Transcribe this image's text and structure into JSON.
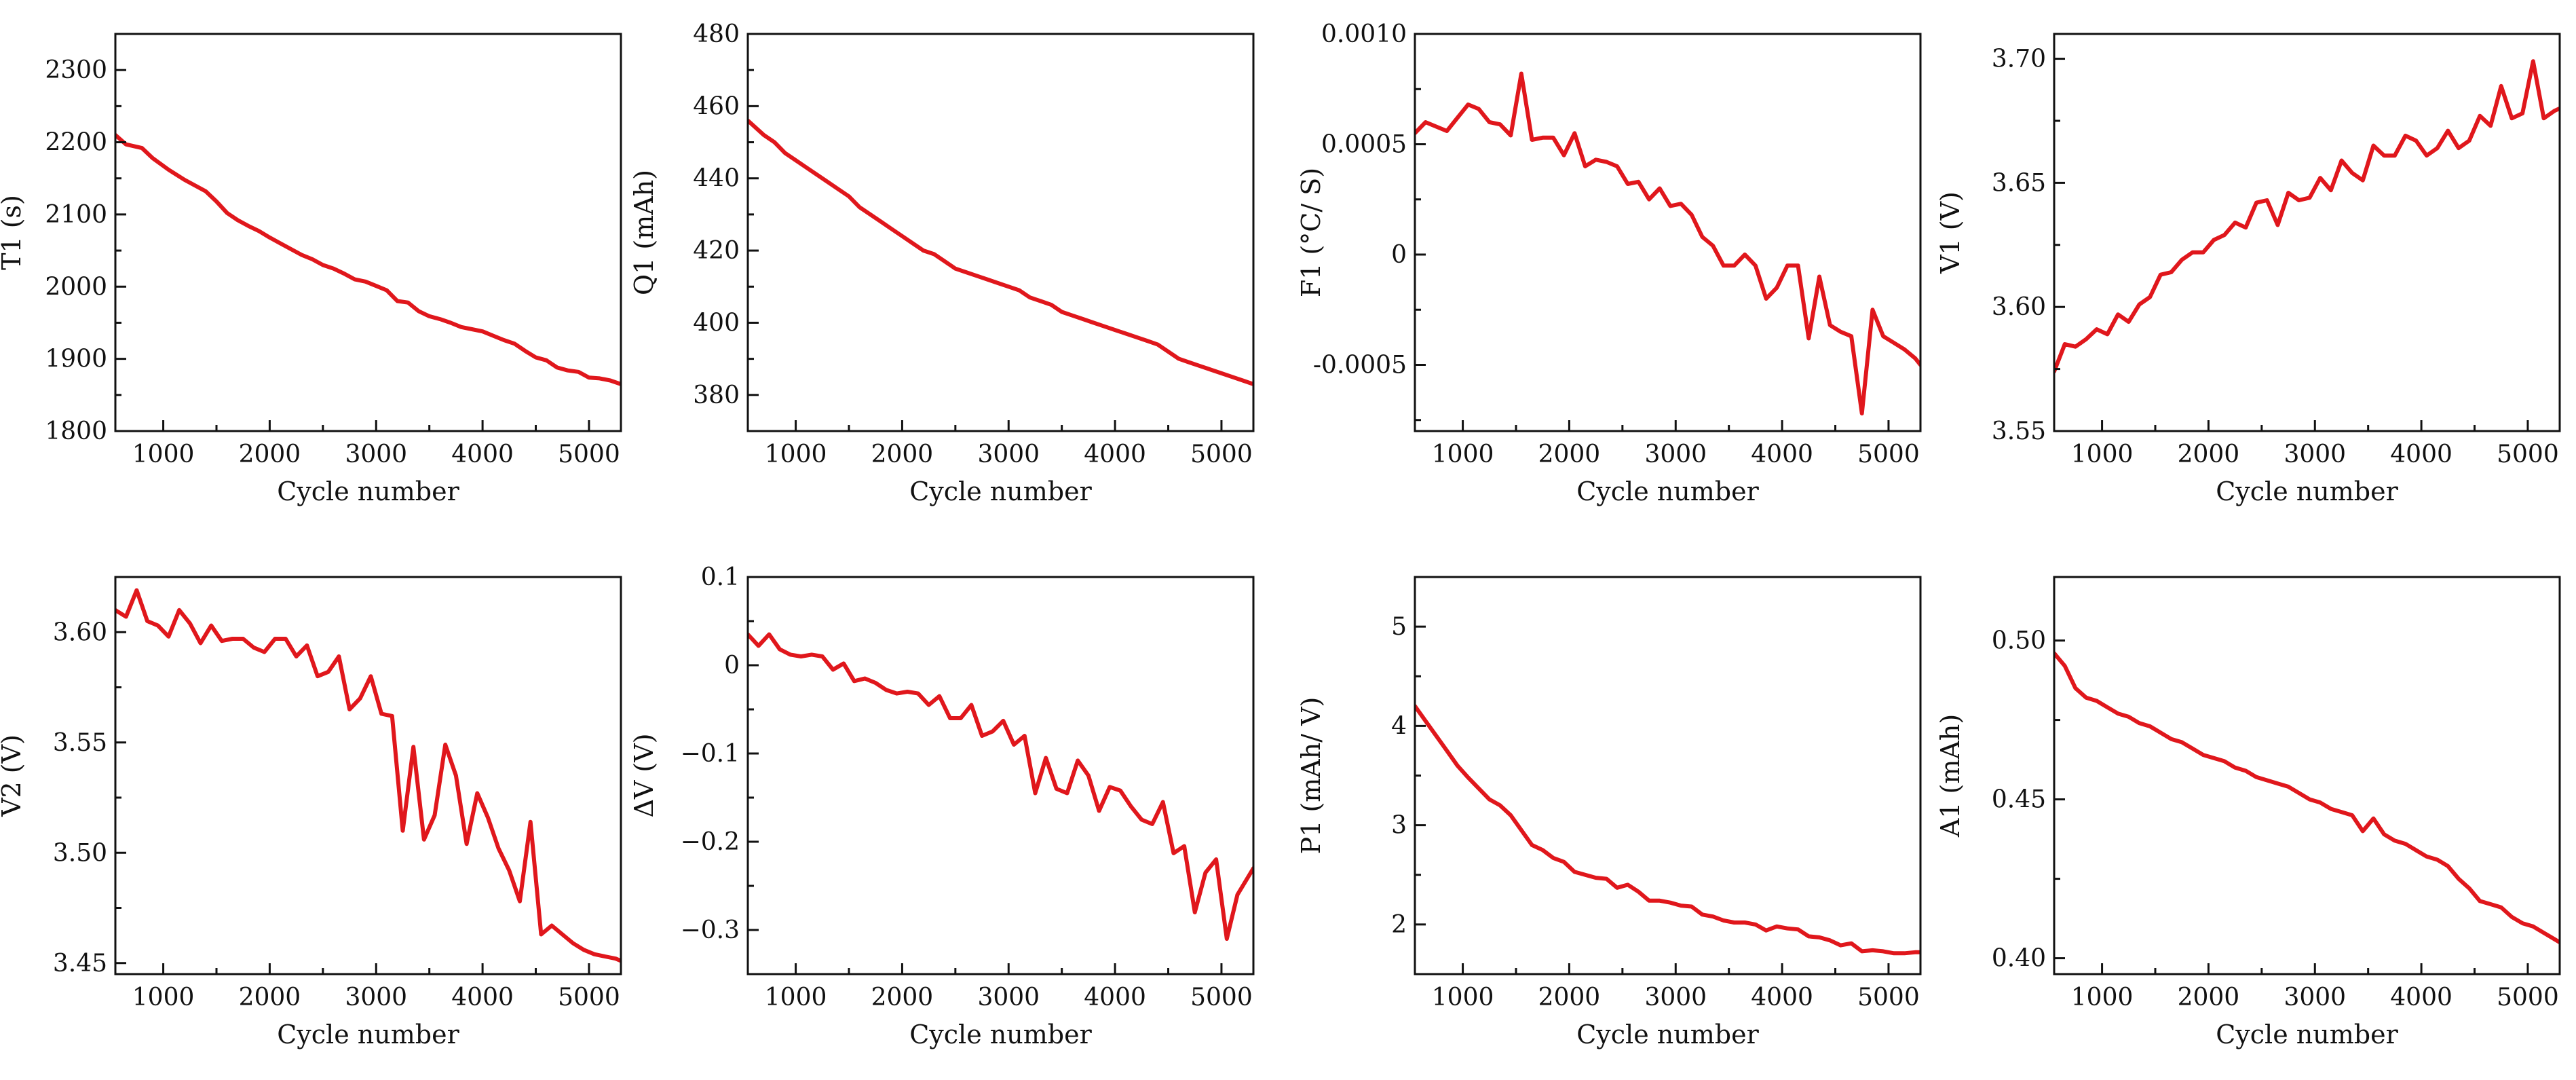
{
  "figure": {
    "line_color": "#e0171c",
    "x_tick_labels": [
      "1000",
      "2000",
      "3000",
      "4000",
      "5000"
    ]
  },
  "chart_data": [
    {
      "type": "line",
      "ylabel": "T1 (s)",
      "xlabel": "Cycle number",
      "xlim": [
        550,
        5300
      ],
      "ylim": [
        1800,
        2350
      ],
      "yticks": [
        1800,
        1900,
        2000,
        2100,
        2200,
        2300
      ],
      "ytick_labels": [
        "1800",
        "1900",
        "2000",
        "2100",
        "2200",
        "2300"
      ],
      "series": [
        {
          "name": "T1",
          "x": [
            550,
            650,
            800,
            900,
            1050,
            1200,
            1300,
            1400,
            1500,
            1600,
            1700,
            1800,
            1900,
            2000,
            2100,
            2200,
            2300,
            2400,
            2500,
            2600,
            2700,
            2800,
            2900,
            3000,
            3100,
            3200,
            3300,
            3400,
            3500,
            3600,
            3700,
            3800,
            3900,
            4000,
            4100,
            4200,
            4300,
            4400,
            4500,
            4600,
            4700,
            4800,
            4900,
            5000,
            5100,
            5200,
            5300
          ],
          "y": [
            2210,
            2197,
            2192,
            2178,
            2162,
            2148,
            2140,
            2132,
            2118,
            2102,
            2092,
            2084,
            2077,
            2068,
            2060,
            2052,
            2044,
            2038,
            2030,
            2025,
            2018,
            2010,
            2007,
            2001,
            1995,
            1980,
            1978,
            1966,
            1959,
            1955,
            1950,
            1944,
            1941,
            1938,
            1932,
            1926,
            1921,
            1911,
            1902,
            1898,
            1888,
            1884,
            1882,
            1874,
            1873,
            1870,
            1865
          ]
        }
      ]
    },
    {
      "type": "line",
      "ylabel": "Q1 (mAh)",
      "xlabel": "Cycle number",
      "xlim": [
        550,
        5300
      ],
      "ylim": [
        370,
        480
      ],
      "yticks": [
        380,
        400,
        420,
        440,
        460,
        480
      ],
      "ytick_labels": [
        "380",
        "400",
        "420",
        "440",
        "460",
        "480"
      ],
      "series": [
        {
          "name": "Q1",
          "x": [
            550,
            700,
            800,
            900,
            1000,
            1100,
            1200,
            1300,
            1400,
            1500,
            1600,
            1700,
            1800,
            1900,
            2000,
            2100,
            2200,
            2300,
            2400,
            2500,
            2600,
            2700,
            2800,
            2900,
            3000,
            3100,
            3200,
            3300,
            3400,
            3500,
            3600,
            3700,
            3800,
            3900,
            4000,
            4100,
            4200,
            4300,
            4400,
            4500,
            4600,
            4700,
            4800,
            4900,
            5000,
            5100,
            5200,
            5300
          ],
          "y": [
            456,
            452,
            450,
            447,
            445,
            443,
            441,
            439,
            437,
            435,
            432,
            430,
            428,
            426,
            424,
            422,
            420,
            419,
            417,
            415,
            414,
            413,
            412,
            411,
            410,
            409,
            407,
            406,
            405,
            403,
            402,
            401,
            400,
            399,
            398,
            397,
            396,
            395,
            394,
            392,
            390,
            389,
            388,
            387,
            386,
            385,
            384,
            383
          ]
        }
      ]
    },
    {
      "type": "line",
      "ylabel": "F1 (°C/ S)",
      "xlabel": "Cycle number",
      "xlim": [
        550,
        5300
      ],
      "ylim": [
        -0.0008,
        0.001
      ],
      "yticks": [
        -0.0005,
        0,
        0.0005,
        0.001
      ],
      "ytick_labels": [
        "-0.0005",
        "0",
        "0.0005",
        "0.0010"
      ],
      "series": [
        {
          "name": "F1",
          "x": [
            550,
            650,
            750,
            850,
            950,
            1050,
            1150,
            1250,
            1350,
            1450,
            1550,
            1650,
            1750,
            1850,
            1950,
            2050,
            2150,
            2250,
            2350,
            2450,
            2550,
            2650,
            2750,
            2850,
            2950,
            3050,
            3150,
            3250,
            3350,
            3450,
            3550,
            3650,
            3750,
            3850,
            3950,
            4050,
            4150,
            4250,
            4350,
            4450,
            4550,
            4650,
            4750,
            4850,
            4950,
            5050,
            5150,
            5250,
            5300
          ],
          "y": [
            0.00055,
            0.0006,
            0.00058,
            0.00056,
            0.00062,
            0.00068,
            0.00066,
            0.0006,
            0.00059,
            0.00054,
            0.00082,
            0.00052,
            0.00053,
            0.00053,
            0.00045,
            0.00055,
            0.0004,
            0.00043,
            0.00042,
            0.0004,
            0.00032,
            0.00033,
            0.00025,
            0.0003,
            0.00022,
            0.00023,
            0.00018,
            8e-05,
            4e-05,
            -5e-05,
            -5e-05,
            0.0,
            -5e-05,
            -0.0002,
            -0.00015,
            -5e-05,
            -5e-05,
            -0.00038,
            -0.0001,
            -0.00032,
            -0.00035,
            -0.00037,
            -0.00072,
            -0.00025,
            -0.00037,
            -0.0004,
            -0.00043,
            -0.00047,
            -0.0005
          ]
        }
      ]
    },
    {
      "type": "line",
      "ylabel": "V1 (V)",
      "xlabel": "Cycle number",
      "xlim": [
        550,
        5300
      ],
      "ylim": [
        3.55,
        3.71
      ],
      "yticks": [
        3.55,
        3.6,
        3.65,
        3.7
      ],
      "ytick_labels": [
        "3.55",
        "3.60",
        "3.65",
        "3.70"
      ],
      "series": [
        {
          "name": "V1",
          "x": [
            550,
            650,
            750,
            850,
            950,
            1050,
            1150,
            1250,
            1350,
            1450,
            1550,
            1650,
            1750,
            1850,
            1950,
            2050,
            2150,
            2250,
            2350,
            2450,
            2550,
            2650,
            2750,
            2850,
            2950,
            3050,
            3150,
            3250,
            3350,
            3450,
            3550,
            3650,
            3750,
            3850,
            3950,
            4050,
            4150,
            4250,
            4350,
            4450,
            4550,
            4650,
            4750,
            4850,
            4950,
            5050,
            5150,
            5250,
            5300
          ],
          "y": [
            3.574,
            3.585,
            3.584,
            3.587,
            3.591,
            3.589,
            3.597,
            3.594,
            3.601,
            3.604,
            3.613,
            3.614,
            3.619,
            3.622,
            3.622,
            3.627,
            3.629,
            3.634,
            3.632,
            3.642,
            3.643,
            3.633,
            3.646,
            3.643,
            3.644,
            3.652,
            3.647,
            3.659,
            3.654,
            3.651,
            3.665,
            3.661,
            3.661,
            3.669,
            3.667,
            3.661,
            3.664,
            3.671,
            3.664,
            3.667,
            3.677,
            3.673,
            3.689,
            3.676,
            3.678,
            3.699,
            3.676,
            3.679,
            3.68
          ]
        }
      ]
    },
    {
      "type": "line",
      "ylabel": "V2 (V)",
      "xlabel": "Cycle number",
      "xlim": [
        550,
        5300
      ],
      "ylim": [
        3.445,
        3.625
      ],
      "yticks": [
        3.45,
        3.5,
        3.55,
        3.6
      ],
      "ytick_labels": [
        "3.45",
        "3.50",
        "3.55",
        "3.60"
      ],
      "series": [
        {
          "name": "V2",
          "x": [
            550,
            650,
            750,
            850,
            950,
            1050,
            1150,
            1250,
            1350,
            1450,
            1550,
            1650,
            1750,
            1850,
            1950,
            2050,
            2150,
            2250,
            2350,
            2450,
            2550,
            2650,
            2750,
            2850,
            2950,
            3050,
            3150,
            3250,
            3350,
            3450,
            3550,
            3650,
            3750,
            3850,
            3950,
            4050,
            4150,
            4250,
            4350,
            4450,
            4550,
            4650,
            4750,
            4850,
            4950,
            5050,
            5150,
            5250,
            5300
          ],
          "y": [
            3.61,
            3.607,
            3.619,
            3.605,
            3.603,
            3.598,
            3.61,
            3.604,
            3.595,
            3.603,
            3.596,
            3.597,
            3.597,
            3.593,
            3.591,
            3.597,
            3.597,
            3.589,
            3.594,
            3.58,
            3.582,
            3.589,
            3.565,
            3.57,
            3.58,
            3.563,
            3.562,
            3.51,
            3.548,
            3.506,
            3.517,
            3.549,
            3.535,
            3.504,
            3.527,
            3.516,
            3.502,
            3.492,
            3.478,
            3.514,
            3.463,
            3.467,
            3.463,
            3.459,
            3.456,
            3.454,
            3.453,
            3.452,
            3.451
          ]
        }
      ]
    },
    {
      "type": "line",
      "ylabel": "ΔV (V)",
      "xlabel": "Cycle number",
      "xlim": [
        550,
        5300
      ],
      "ylim": [
        -0.35,
        0.1
      ],
      "yticks": [
        -0.3,
        -0.2,
        -0.1,
        0,
        0.1
      ],
      "ytick_labels": [
        "−0.3",
        "−0.2",
        "−0.1",
        "0",
        "0.1"
      ],
      "series": [
        {
          "name": "ΔV",
          "x": [
            550,
            650,
            750,
            850,
            950,
            1050,
            1150,
            1250,
            1350,
            1450,
            1550,
            1650,
            1750,
            1850,
            1950,
            2050,
            2150,
            2250,
            2350,
            2450,
            2550,
            2650,
            2750,
            2850,
            2950,
            3050,
            3150,
            3250,
            3350,
            3450,
            3550,
            3650,
            3750,
            3850,
            3950,
            4050,
            4150,
            4250,
            4350,
            4450,
            4550,
            4650,
            4750,
            4850,
            4950,
            5050,
            5150,
            5250,
            5300
          ],
          "y": [
            0.035,
            0.022,
            0.035,
            0.018,
            0.012,
            0.01,
            0.012,
            0.01,
            -0.005,
            0.002,
            -0.018,
            -0.015,
            -0.02,
            -0.028,
            -0.032,
            -0.03,
            -0.032,
            -0.045,
            -0.035,
            -0.06,
            -0.06,
            -0.045,
            -0.08,
            -0.075,
            -0.063,
            -0.09,
            -0.08,
            -0.145,
            -0.105,
            -0.14,
            -0.145,
            -0.108,
            -0.125,
            -0.165,
            -0.138,
            -0.142,
            -0.16,
            -0.175,
            -0.18,
            -0.155,
            -0.213,
            -0.205,
            -0.28,
            -0.235,
            -0.22,
            -0.31,
            -0.26,
            -0.24,
            -0.23
          ]
        }
      ]
    },
    {
      "type": "line",
      "ylabel": "P1 (mAh/ V)",
      "xlabel": "Cycle number",
      "xlim": [
        550,
        5300
      ],
      "ylim": [
        1.5,
        5.5
      ],
      "yticks": [
        2,
        3,
        4,
        5
      ],
      "ytick_labels": [
        "2",
        "3",
        "4",
        "5"
      ],
      "series": [
        {
          "name": "P1",
          "x": [
            550,
            650,
            750,
            850,
            950,
            1050,
            1150,
            1250,
            1350,
            1450,
            1550,
            1650,
            1750,
            1850,
            1950,
            2050,
            2150,
            2250,
            2350,
            2450,
            2550,
            2650,
            2750,
            2850,
            2950,
            3050,
            3150,
            3250,
            3350,
            3450,
            3550,
            3650,
            3750,
            3850,
            3950,
            4050,
            4150,
            4250,
            4350,
            4450,
            4550,
            4650,
            4750,
            4850,
            4950,
            5050,
            5150,
            5250,
            5300
          ],
          "y": [
            4.2,
            4.05,
            3.9,
            3.75,
            3.6,
            3.48,
            3.37,
            3.26,
            3.2,
            3.1,
            2.95,
            2.8,
            2.75,
            2.67,
            2.63,
            2.53,
            2.5,
            2.47,
            2.46,
            2.37,
            2.4,
            2.33,
            2.24,
            2.24,
            2.22,
            2.19,
            2.18,
            2.1,
            2.08,
            2.04,
            2.02,
            2.02,
            2.0,
            1.94,
            1.98,
            1.96,
            1.95,
            1.88,
            1.87,
            1.84,
            1.79,
            1.81,
            1.73,
            1.74,
            1.73,
            1.71,
            1.71,
            1.72,
            1.72
          ]
        }
      ]
    },
    {
      "type": "line",
      "ylabel": "A1 (mAh)",
      "xlabel": "Cycle number",
      "xlim": [
        550,
        5300
      ],
      "ylim": [
        0.395,
        0.52
      ],
      "yticks": [
        0.4,
        0.45,
        0.5
      ],
      "ytick_labels": [
        "0.40",
        "0.45",
        "0.50"
      ],
      "series": [
        {
          "name": "A1",
          "x": [
            550,
            650,
            750,
            850,
            950,
            1050,
            1150,
            1250,
            1350,
            1450,
            1550,
            1650,
            1750,
            1850,
            1950,
            2050,
            2150,
            2250,
            2350,
            2450,
            2550,
            2650,
            2750,
            2850,
            2950,
            3050,
            3150,
            3250,
            3350,
            3450,
            3550,
            3650,
            3750,
            3850,
            3950,
            4050,
            4150,
            4250,
            4350,
            4450,
            4550,
            4650,
            4750,
            4850,
            4950,
            5050,
            5150,
            5250,
            5300
          ],
          "y": [
            0.496,
            0.492,
            0.485,
            0.482,
            0.481,
            0.479,
            0.477,
            0.476,
            0.474,
            0.473,
            0.471,
            0.469,
            0.468,
            0.466,
            0.464,
            0.463,
            0.462,
            0.46,
            0.459,
            0.457,
            0.456,
            0.455,
            0.454,
            0.452,
            0.45,
            0.449,
            0.447,
            0.446,
            0.445,
            0.44,
            0.444,
            0.439,
            0.437,
            0.436,
            0.434,
            0.432,
            0.431,
            0.429,
            0.425,
            0.422,
            0.418,
            0.417,
            0.416,
            0.413,
            0.411,
            0.41,
            0.408,
            0.406,
            0.405
          ]
        }
      ]
    }
  ]
}
